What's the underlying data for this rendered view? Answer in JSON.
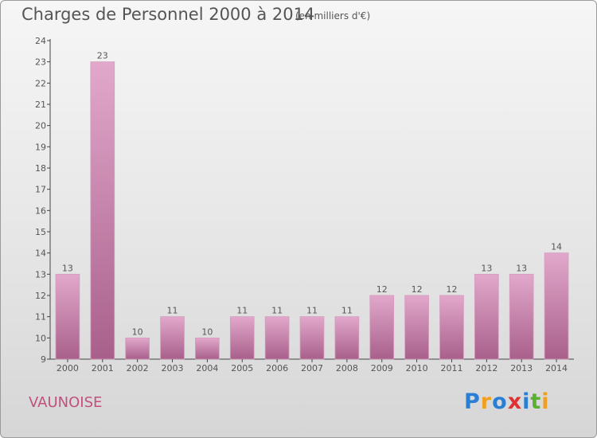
{
  "chart_data": {
    "type": "bar",
    "title": "Charges de Personnel 2000 à 2014",
    "subtitle": "(en milliers d'€)",
    "categories": [
      "2000",
      "2001",
      "2002",
      "2003",
      "2004",
      "2005",
      "2006",
      "2007",
      "2008",
      "2009",
      "2010",
      "2011",
      "2012",
      "2013",
      "2014"
    ],
    "values": [
      13,
      23,
      10,
      11,
      10,
      11,
      11,
      11,
      11,
      12,
      12,
      12,
      13,
      13,
      14
    ],
    "ylim": [
      9,
      24
    ],
    "yticks": [
      9,
      10,
      11,
      12,
      13,
      14,
      15,
      16,
      17,
      18,
      19,
      20,
      21,
      22,
      23,
      24
    ],
    "bar_color": "#c97ba8",
    "data_labels": true,
    "grid": false
  },
  "commune": "VAUNOISE",
  "logo": {
    "letters": [
      "P",
      "r",
      "o",
      "x",
      "i",
      "t",
      "i"
    ],
    "colors": [
      "#2a7fd4",
      "#f0a020",
      "#2a7fd4",
      "#e03030",
      "#2a7fd4",
      "#5ab030",
      "#f0a020"
    ]
  }
}
